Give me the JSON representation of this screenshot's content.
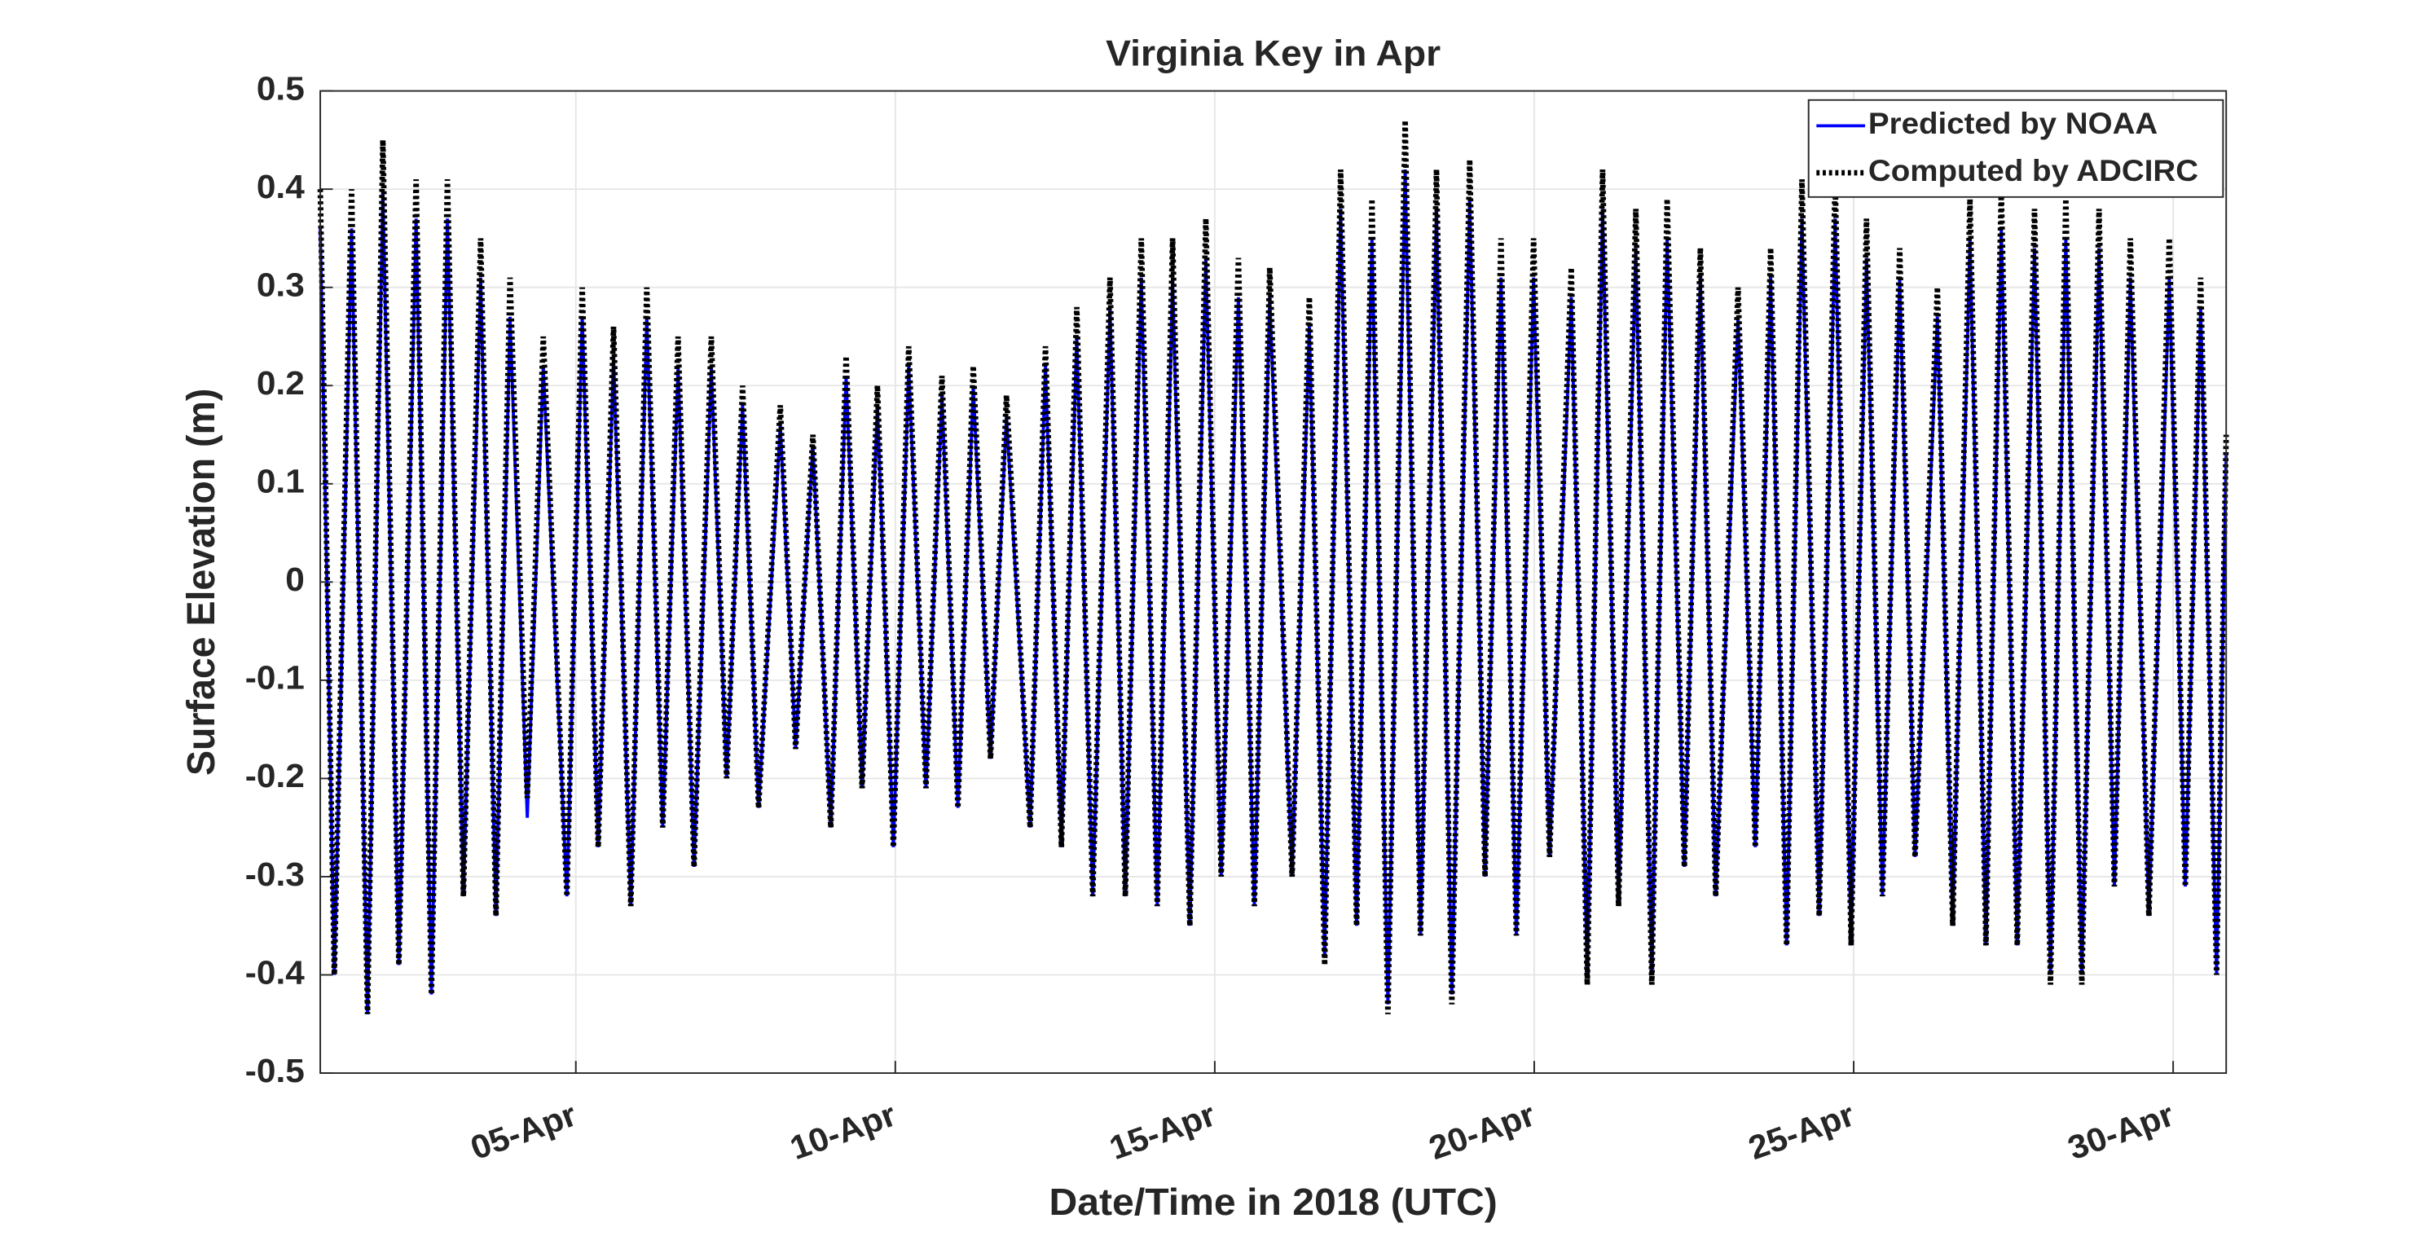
{
  "chart_data": {
    "type": "line",
    "title": "Virginia Key in Apr",
    "xlabel": "Date/Time in 2018 (UTC)",
    "ylabel": "Surface Elevation (m)",
    "x": [
      1.0,
      1.22,
      1.49,
      1.74,
      1.98,
      2.23,
      2.5,
      2.74,
      2.99,
      3.24,
      3.51,
      3.75,
      3.97,
      4.24,
      4.49,
      4.86,
      5.1,
      5.35,
      5.59,
      5.86,
      6.11,
      6.36,
      6.6,
      6.85,
      7.12,
      7.36,
      7.61,
      7.86,
      8.2,
      8.44,
      8.71,
      8.99,
      9.23,
      9.48,
      9.72,
      9.97,
      10.21,
      10.48,
      10.73,
      10.98,
      11.22,
      11.49,
      11.74,
      12.11,
      12.35,
      12.6,
      12.84,
      13.09,
      13.36,
      13.6,
      13.85,
      14.1,
      14.34,
      14.61,
      14.86,
      15.1,
      15.37,
      15.62,
      15.86,
      16.21,
      16.48,
      16.72,
      16.97,
      17.22,
      17.46,
      17.71,
      17.98,
      18.22,
      18.47,
      18.71,
      18.99,
      19.23,
      19.48,
      19.72,
      19.99,
      20.24,
      20.58,
      20.83,
      21.07,
      21.32,
      21.59,
      21.84,
      22.08,
      22.35,
      22.6,
      22.84,
      23.19,
      23.46,
      23.7,
      23.95,
      24.19,
      24.46,
      24.71,
      24.96,
      25.2,
      25.45,
      25.72,
      25.96,
      26.31,
      26.55,
      26.82,
      27.07,
      27.31,
      27.56,
      27.83,
      28.08,
      28.32,
      28.57,
      28.84,
      29.08,
      29.33,
      29.62,
      29.94,
      30.19,
      30.43,
      30.68,
      30.83
    ],
    "series": [
      {
        "name": "Predicted by NOAA",
        "color": "#0000ff",
        "dash": "none",
        "values": [
          0.36,
          -0.4,
          0.36,
          -0.44,
          0.4,
          -0.39,
          0.37,
          -0.42,
          0.37,
          -0.32,
          0.31,
          -0.34,
          0.27,
          -0.24,
          0.22,
          -0.32,
          0.27,
          -0.27,
          0.23,
          -0.33,
          0.27,
          -0.25,
          0.22,
          -0.29,
          0.22,
          -0.2,
          0.18,
          -0.23,
          0.16,
          -0.17,
          0.14,
          -0.25,
          0.21,
          -0.21,
          0.18,
          -0.27,
          0.22,
          -0.21,
          0.19,
          -0.23,
          0.2,
          -0.18,
          0.17,
          -0.25,
          0.22,
          -0.27,
          0.25,
          -0.32,
          0.28,
          -0.32,
          0.31,
          -0.33,
          0.31,
          -0.35,
          0.33,
          -0.3,
          0.29,
          -0.33,
          0.29,
          -0.3,
          0.26,
          -0.38,
          0.38,
          -0.35,
          0.35,
          -0.43,
          0.42,
          -0.36,
          0.38,
          -0.42,
          0.39,
          -0.3,
          0.31,
          -0.36,
          0.31,
          -0.28,
          0.29,
          -0.4,
          0.38,
          -0.33,
          0.34,
          -0.4,
          0.35,
          -0.29,
          0.31,
          -0.32,
          0.27,
          -0.27,
          0.31,
          -0.37,
          0.37,
          -0.34,
          0.37,
          -0.37,
          0.33,
          -0.32,
          0.31,
          -0.28,
          0.27,
          -0.35,
          0.35,
          -0.37,
          0.36,
          -0.37,
          0.34,
          -0.4,
          0.35,
          -0.4,
          0.34,
          -0.31,
          0.31,
          -0.34,
          0.31,
          -0.31,
          0.28,
          -0.4,
          0.13
        ]
      },
      {
        "name": "Computed by ADCIRC",
        "color": "#000000",
        "dash": "dotted",
        "values": [
          0.4,
          -0.4,
          0.4,
          -0.44,
          0.45,
          -0.39,
          0.41,
          -0.42,
          0.41,
          -0.32,
          0.35,
          -0.34,
          0.31,
          -0.22,
          0.25,
          -0.32,
          0.3,
          -0.27,
          0.26,
          -0.33,
          0.3,
          -0.25,
          0.25,
          -0.29,
          0.25,
          -0.2,
          0.2,
          -0.23,
          0.18,
          -0.17,
          0.15,
          -0.25,
          0.23,
          -0.21,
          0.2,
          -0.27,
          0.24,
          -0.21,
          0.21,
          -0.23,
          0.22,
          -0.18,
          0.19,
          -0.25,
          0.24,
          -0.27,
          0.28,
          -0.32,
          0.31,
          -0.32,
          0.35,
          -0.33,
          0.35,
          -0.35,
          0.37,
          -0.3,
          0.33,
          -0.33,
          0.32,
          -0.3,
          0.29,
          -0.39,
          0.42,
          -0.35,
          0.39,
          -0.44,
          0.47,
          -0.36,
          0.42,
          -0.43,
          0.43,
          -0.3,
          0.35,
          -0.36,
          0.35,
          -0.28,
          0.32,
          -0.41,
          0.42,
          -0.33,
          0.38,
          -0.41,
          0.39,
          -0.29,
          0.34,
          -0.32,
          0.3,
          -0.27,
          0.34,
          -0.37,
          0.41,
          -0.34,
          0.41,
          -0.37,
          0.37,
          -0.32,
          0.34,
          -0.28,
          0.3,
          -0.35,
          0.39,
          -0.37,
          0.4,
          -0.37,
          0.38,
          -0.41,
          0.39,
          -0.41,
          0.38,
          -0.31,
          0.35,
          -0.34,
          0.35,
          -0.31,
          0.31,
          -0.4,
          0.15
        ]
      }
    ],
    "xlim": [
      1,
      30.83
    ],
    "xticks": [
      {
        "value": 5,
        "label": "05-Apr"
      },
      {
        "value": 10,
        "label": "10-Apr"
      },
      {
        "value": 15,
        "label": "15-Apr"
      },
      {
        "value": 20,
        "label": "20-Apr"
      },
      {
        "value": 25,
        "label": "25-Apr"
      },
      {
        "value": 30,
        "label": "30-Apr"
      }
    ],
    "ylim": [
      -0.5,
      0.5
    ],
    "yticks": [
      -0.5,
      -0.4,
      -0.3,
      -0.2,
      -0.1,
      0,
      0.1,
      0.2,
      0.3,
      0.4,
      0.5
    ],
    "grid": true,
    "legend": "northeast"
  }
}
